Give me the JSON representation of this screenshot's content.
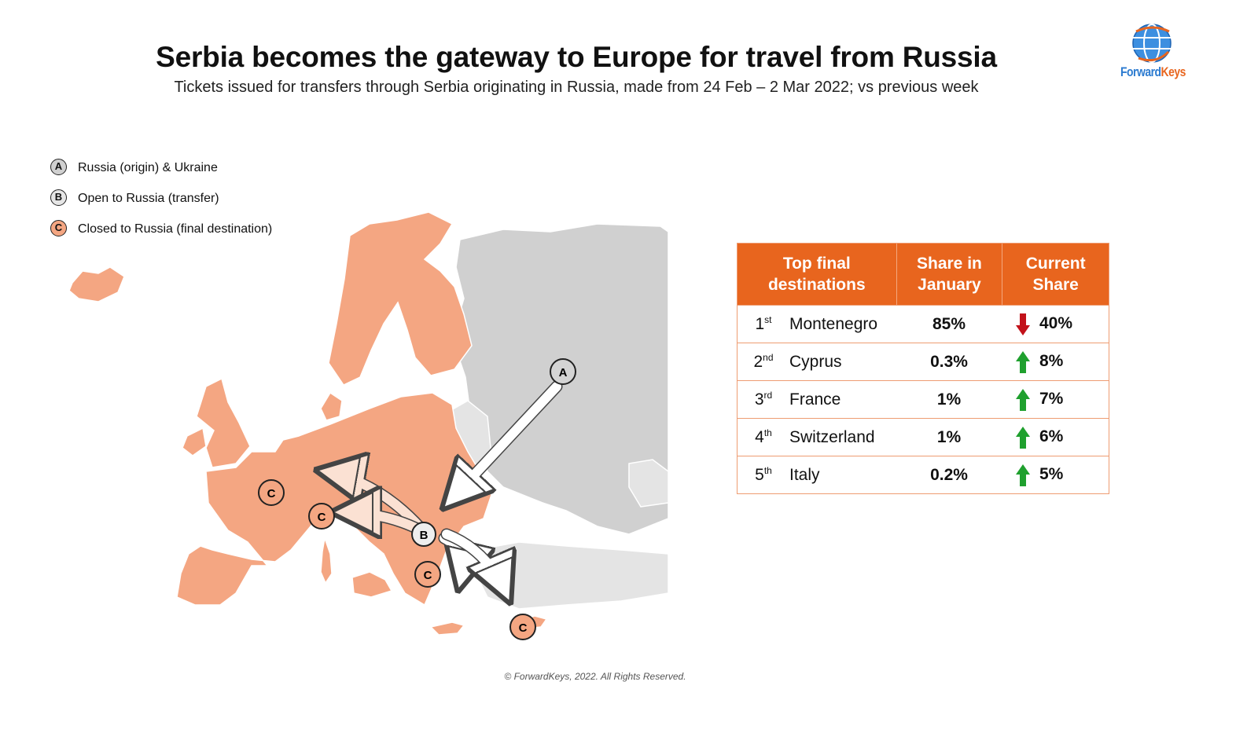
{
  "header": {
    "title": "Serbia becomes the gateway to Europe for travel from Russia",
    "subtitle": "Tickets issued for transfers through Serbia originating in Russia, made from 24 Feb – 2 Mar 2022; vs previous week"
  },
  "logo": {
    "part1": "Forward",
    "part2": "Keys",
    "colors": {
      "primary": "#2c7bd0",
      "accent": "#e8651e"
    }
  },
  "legend": [
    {
      "letter": "A",
      "label": "Russia (origin) & Ukraine",
      "color": "#d0d0d0"
    },
    {
      "letter": "B",
      "label": "Open to Russia (transfer)",
      "color": "#e6e6e6"
    },
    {
      "letter": "C",
      "label": "Closed to Russia (final destination)",
      "color": "#f4a682"
    }
  ],
  "map": {
    "markers": {
      "A": "A",
      "B": "B",
      "C": "C"
    },
    "colors": {
      "closed": "#f4a682",
      "open": "#e4e4e4",
      "origin": "#d0d0d0",
      "border": "#ffffff"
    }
  },
  "table": {
    "headers": [
      "Top final destinations",
      "Share in January",
      "Current Share"
    ],
    "header_color": "#e8651e",
    "rows": [
      {
        "rank": "1",
        "suffix": "st",
        "destination": "Montenegro",
        "january": "85%",
        "current": "40%",
        "trend": "down"
      },
      {
        "rank": "2",
        "suffix": "nd",
        "destination": "Cyprus",
        "january": "0.3%",
        "current": "8%",
        "trend": "up"
      },
      {
        "rank": "3",
        "suffix": "rd",
        "destination": "France",
        "january": "1%",
        "current": "7%",
        "trend": "up"
      },
      {
        "rank": "4",
        "suffix": "th",
        "destination": "Switzerland",
        "january": "1%",
        "current": "6%",
        "trend": "up"
      },
      {
        "rank": "5",
        "suffix": "th",
        "destination": "Italy",
        "january": "0.2%",
        "current": "5%",
        "trend": "up"
      }
    ],
    "trend_colors": {
      "up": "#1fa02e",
      "down": "#c2121a"
    }
  },
  "footer": {
    "copyright": "© ForwardKeys, 2022. All Rights Reserved."
  }
}
